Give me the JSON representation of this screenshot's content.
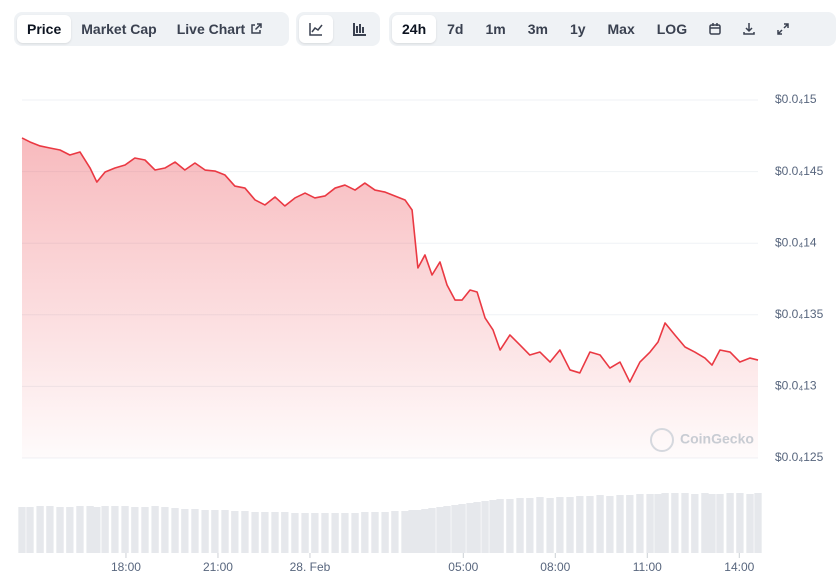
{
  "toolbar": {
    "tabs": [
      "Price",
      "Market Cap",
      "Live Chart"
    ],
    "ranges": [
      "24h",
      "7d",
      "1m",
      "3m",
      "1y",
      "Max",
      "LOG"
    ]
  },
  "chart_data": {
    "type": "area",
    "watermark": "CoinGecko",
    "color": "#ea3943",
    "volume_color": "#e6e8ec",
    "x": [
      14.61,
      14.87,
      15.2,
      15.52,
      15.85,
      16.17,
      16.5,
      16.83,
      17.05,
      17.32,
      17.64,
      17.97,
      18.29,
      18.62,
      18.95,
      19.27,
      19.6,
      19.92,
      20.25,
      20.58,
      20.9,
      21.23,
      21.55,
      21.88,
      22.21,
      22.53,
      22.86,
      23.18,
      23.51,
      23.84,
      24.16,
      24.49,
      24.82,
      25.14,
      25.47,
      25.79,
      26.12,
      26.45,
      26.77,
      27.1,
      27.33,
      27.52,
      27.75,
      27.98,
      28.24,
      28.47,
      28.73,
      28.96,
      29.22,
      29.45,
      29.71,
      29.97,
      30.2,
      30.52,
      30.85,
      31.17,
      31.5,
      31.83,
      32.15,
      32.48,
      32.8,
      33.13,
      33.46,
      33.78,
      34.11,
      34.43,
      34.76,
      35.09,
      35.35,
      35.58,
      35.9,
      36.23,
      36.55,
      36.88,
      37.11,
      37.37,
      37.7,
      38.02,
      38.35,
      38.61
    ],
    "series": [
      {
        "name": "Price",
        "values": [
          1.4735e-05,
          1.4707e-05,
          1.4679e-05,
          1.4665e-05,
          1.4651e-05,
          1.4616e-05,
          1.4637e-05,
          1.4525e-05,
          1.4427e-05,
          1.4497e-05,
          1.4525e-05,
          1.4546e-05,
          1.4595e-05,
          1.4581e-05,
          1.4511e-05,
          1.4525e-05,
          1.4567e-05,
          1.4511e-05,
          1.456e-05,
          1.4511e-05,
          1.4504e-05,
          1.4476e-05,
          1.4399e-05,
          1.4385e-05,
          1.4302e-05,
          1.4267e-05,
          1.4323e-05,
          1.426e-05,
          1.4316e-05,
          1.435e-05,
          1.4316e-05,
          1.433e-05,
          1.4385e-05,
          1.4406e-05,
          1.4371e-05,
          1.442e-05,
          1.4371e-05,
          1.4357e-05,
          1.433e-05,
          1.4302e-05,
          1.4232e-05,
          1.3827e-05,
          1.3918e-05,
          1.3778e-05,
          1.3869e-05,
          1.3708e-05,
          1.3603e-05,
          1.3603e-05,
          1.3673e-05,
          1.3659e-05,
          1.3478e-05,
          1.3394e-05,
          1.3254e-05,
          1.3359e-05,
          1.3289e-05,
          1.3219e-05,
          1.324e-05,
          1.317e-05,
          1.3254e-05,
          1.3115e-05,
          1.3094e-05,
          1.324e-05,
          1.3219e-05,
          1.3128e-05,
          1.317e-05,
          1.3031e-05,
          1.317e-05,
          1.324e-05,
          1.331e-05,
          1.3443e-05,
          1.3359e-05,
          1.3275e-05,
          1.324e-05,
          1.3198e-05,
          1.3149e-05,
          1.3254e-05,
          1.324e-05,
          1.317e-05,
          1.3198e-05,
          1.3184e-05
        ]
      },
      {
        "name": "Volume",
        "values": [
          46,
          46,
          47,
          47,
          46,
          46,
          47,
          47,
          46,
          47,
          47,
          47,
          46,
          46,
          47,
          46,
          45,
          44,
          44,
          43,
          43,
          43,
          42,
          42,
          41,
          41,
          41,
          41,
          40,
          40,
          40,
          40,
          40,
          40,
          40,
          41,
          41,
          41,
          42,
          42,
          43,
          43,
          44,
          45,
          46,
          47,
          48,
          49,
          50,
          51,
          52,
          53,
          54,
          54,
          55,
          55,
          56,
          55,
          56,
          56,
          57,
          57,
          58,
          57,
          58,
          58,
          59,
          59,
          59,
          60,
          60,
          60,
          59,
          60,
          59,
          59,
          60,
          60,
          59,
          60
        ]
      }
    ],
    "xlim": [
      14.61,
      38.61
    ],
    "xticks": [
      {
        "value": 18,
        "label": "18:00"
      },
      {
        "value": 21,
        "label": "21:00"
      },
      {
        "value": 24,
        "label": "28. Feb"
      },
      {
        "value": 29,
        "label": "05:00"
      },
      {
        "value": 32,
        "label": "08:00"
      },
      {
        "value": 35,
        "label": "11:00"
      },
      {
        "value": 38,
        "label": "14:00"
      }
    ],
    "ylim": [
      1.25e-05,
      1.5e-05
    ],
    "yticks": [
      {
        "value": 1.5e-05,
        "label": "$0.0₄15"
      },
      {
        "value": 1.45e-05,
        "label": "$0.0₄145"
      },
      {
        "value": 1.4e-05,
        "label": "$0.0₄14"
      },
      {
        "value": 1.35e-05,
        "label": "$0.0₄135"
      },
      {
        "value": 1.3e-05,
        "label": "$0.0₄13"
      },
      {
        "value": 1.25e-05,
        "label": "$0.0₄125"
      }
    ],
    "grid": true
  }
}
